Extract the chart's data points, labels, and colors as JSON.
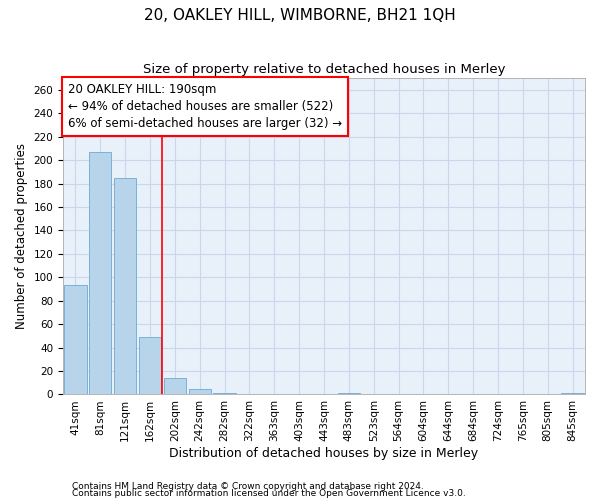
{
  "title1": "20, OAKLEY HILL, WIMBORNE, BH21 1QH",
  "title2": "Size of property relative to detached houses in Merley",
  "xlabel": "Distribution of detached houses by size in Merley",
  "ylabel": "Number of detached properties",
  "categories": [
    "41sqm",
    "81sqm",
    "121sqm",
    "162sqm",
    "202sqm",
    "242sqm",
    "282sqm",
    "322sqm",
    "363sqm",
    "403sqm",
    "443sqm",
    "483sqm",
    "523sqm",
    "564sqm",
    "604sqm",
    "644sqm",
    "684sqm",
    "724sqm",
    "765sqm",
    "805sqm",
    "845sqm"
  ],
  "values": [
    93,
    207,
    185,
    49,
    14,
    5,
    1,
    0,
    0,
    0,
    0,
    1,
    0,
    0,
    0,
    0,
    0,
    0,
    0,
    0,
    1
  ],
  "bar_color": "#b8d4ea",
  "bar_edge_color": "#6aaad4",
  "grid_color": "#c8d8ea",
  "background_color": "#e8f1fa",
  "red_line_x": 4.0,
  "annotation_line1": "20 OAKLEY HILL: 190sqm",
  "annotation_line2": "← 94% of detached houses are smaller (522)",
  "annotation_line3": "6% of semi-detached houses are larger (32) →",
  "ylim": [
    0,
    270
  ],
  "yticks": [
    0,
    20,
    40,
    60,
    80,
    100,
    120,
    140,
    160,
    180,
    200,
    220,
    240,
    260
  ],
  "footer1": "Contains HM Land Registry data © Crown copyright and database right 2024.",
  "footer2": "Contains public sector information licensed under the Open Government Licence v3.0.",
  "title1_fontsize": 11,
  "title2_fontsize": 9.5,
  "xlabel_fontsize": 9,
  "ylabel_fontsize": 8.5,
  "tick_fontsize": 7.5,
  "annotation_fontsize": 8.5,
  "footer_fontsize": 6.5
}
